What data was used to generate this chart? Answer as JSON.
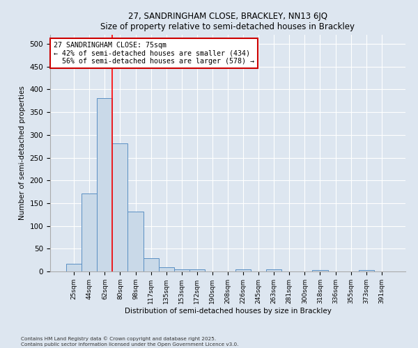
{
  "title_line1": "27, SANDRINGHAM CLOSE, BRACKLEY, NN13 6JQ",
  "title_line2": "Size of property relative to semi-detached houses in Brackley",
  "xlabel": "Distribution of semi-detached houses by size in Brackley",
  "ylabel": "Number of semi-detached properties",
  "categories": [
    "25sqm",
    "44sqm",
    "62sqm",
    "80sqm",
    "98sqm",
    "117sqm",
    "135sqm",
    "153sqm",
    "172sqm",
    "190sqm",
    "208sqm",
    "226sqm",
    "245sqm",
    "263sqm",
    "281sqm",
    "300sqm",
    "318sqm",
    "336sqm",
    "355sqm",
    "373sqm",
    "391sqm"
  ],
  "values": [
    17,
    172,
    381,
    281,
    131,
    29,
    9,
    5,
    4,
    0,
    0,
    5,
    0,
    4,
    0,
    0,
    3,
    0,
    0,
    3,
    0
  ],
  "bar_color": "#c9d9e8",
  "bar_edge_color": "#5a8fc3",
  "property_label": "27 SANDRINGHAM CLOSE: 75sqm",
  "pct_smaller": 42,
  "pct_larger": 56,
  "count_smaller": 434,
  "count_larger": 578,
  "red_line_x": 2.5,
  "annotation_box_color": "#ffffff",
  "annotation_box_edge": "#cc0000",
  "ylim": [
    0,
    520
  ],
  "yticks": [
    0,
    50,
    100,
    150,
    200,
    250,
    300,
    350,
    400,
    450,
    500
  ],
  "footer_line1": "Contains HM Land Registry data © Crown copyright and database right 2025.",
  "footer_line2": "Contains public sector information licensed under the Open Government Licence v3.0.",
  "bg_color": "#dde6f0",
  "plot_bg_color": "#dde6f0"
}
